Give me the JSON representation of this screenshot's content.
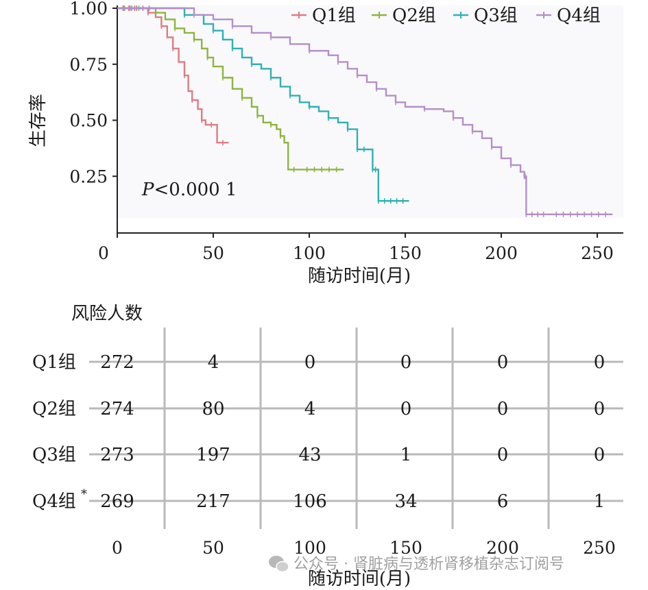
{
  "chart_data": {
    "type": "line",
    "subtype": "kaplan-meier",
    "ylabel": "生存率",
    "xlabel": "随访时间(月)",
    "xlim": [
      0,
      260
    ],
    "ylim": [
      0.07,
      1.0
    ],
    "x_ticks": [
      "0",
      "50",
      "100",
      "150",
      "200",
      "250"
    ],
    "y_ticks": [
      "0.25",
      "0.50",
      "0.75",
      "1.00"
    ],
    "x_tick_values": [
      0,
      50,
      100,
      150,
      200,
      250
    ],
    "y_tick_values": [
      0.25,
      0.5,
      0.75,
      1.0
    ],
    "annotation": {
      "italic": "P",
      "text": "<0.000 1"
    },
    "legend_position": "top-right",
    "series": [
      {
        "name": "Q1组",
        "color": "#dd7b82",
        "points": [
          [
            0,
            1.0
          ],
          [
            12,
            1.0
          ],
          [
            16,
            0.98
          ],
          [
            20,
            0.96
          ],
          [
            23,
            0.92
          ],
          [
            26,
            0.87
          ],
          [
            29,
            0.82
          ],
          [
            32,
            0.76
          ],
          [
            35,
            0.7
          ],
          [
            37,
            0.63
          ],
          [
            39,
            0.59
          ],
          [
            42,
            0.55
          ],
          [
            44,
            0.5
          ],
          [
            46,
            0.48
          ],
          [
            52,
            0.48
          ],
          [
            52,
            0.4
          ],
          [
            58,
            0.4
          ]
        ]
      },
      {
        "name": "Q2组",
        "color": "#8db43e",
        "points": [
          [
            0,
            1.0
          ],
          [
            15,
            1.0
          ],
          [
            20,
            0.98
          ],
          [
            25,
            0.95
          ],
          [
            30,
            0.91
          ],
          [
            35,
            0.89
          ],
          [
            40,
            0.86
          ],
          [
            44,
            0.82
          ],
          [
            47,
            0.78
          ],
          [
            50,
            0.74
          ],
          [
            55,
            0.69
          ],
          [
            60,
            0.64
          ],
          [
            65,
            0.6
          ],
          [
            70,
            0.56
          ],
          [
            73,
            0.52
          ],
          [
            76,
            0.49
          ],
          [
            80,
            0.48
          ],
          [
            83,
            0.46
          ],
          [
            85,
            0.43
          ],
          [
            87,
            0.4
          ],
          [
            89,
            0.38
          ],
          [
            89,
            0.28
          ],
          [
            95,
            0.28
          ],
          [
            118,
            0.28
          ]
        ]
      },
      {
        "name": "Q3组",
        "color": "#2eb0b5",
        "points": [
          [
            0,
            1.0
          ],
          [
            20,
            1.0
          ],
          [
            35,
            0.97
          ],
          [
            45,
            0.93
          ],
          [
            50,
            0.9
          ],
          [
            55,
            0.86
          ],
          [
            60,
            0.82
          ],
          [
            65,
            0.78
          ],
          [
            70,
            0.75
          ],
          [
            75,
            0.73
          ],
          [
            80,
            0.69
          ],
          [
            85,
            0.65
          ],
          [
            90,
            0.61
          ],
          [
            95,
            0.58
          ],
          [
            100,
            0.56
          ],
          [
            105,
            0.54
          ],
          [
            110,
            0.51
          ],
          [
            115,
            0.49
          ],
          [
            120,
            0.46
          ],
          [
            125,
            0.44
          ],
          [
            125,
            0.37
          ],
          [
            132,
            0.37
          ],
          [
            133,
            0.28
          ],
          [
            136,
            0.28
          ],
          [
            136,
            0.14
          ],
          [
            152,
            0.14
          ]
        ]
      },
      {
        "name": "Q4组",
        "color": "#b48ec8",
        "points": [
          [
            0,
            1.0
          ],
          [
            20,
            1.0
          ],
          [
            40,
            0.97
          ],
          [
            50,
            0.95
          ],
          [
            60,
            0.92
          ],
          [
            70,
            0.89
          ],
          [
            80,
            0.87
          ],
          [
            90,
            0.84
          ],
          [
            100,
            0.81
          ],
          [
            110,
            0.79
          ],
          [
            115,
            0.76
          ],
          [
            120,
            0.73
          ],
          [
            125,
            0.7
          ],
          [
            130,
            0.67
          ],
          [
            135,
            0.64
          ],
          [
            140,
            0.61
          ],
          [
            145,
            0.58
          ],
          [
            150,
            0.56
          ],
          [
            160,
            0.55
          ],
          [
            170,
            0.54
          ],
          [
            175,
            0.51
          ],
          [
            180,
            0.48
          ],
          [
            185,
            0.45
          ],
          [
            190,
            0.42
          ],
          [
            195,
            0.38
          ],
          [
            200,
            0.33
          ],
          [
            205,
            0.3
          ],
          [
            210,
            0.27
          ],
          [
            212,
            0.25
          ],
          [
            213,
            0.25
          ],
          [
            213,
            0.08
          ],
          [
            225,
            0.08
          ],
          [
            258,
            0.08
          ]
        ]
      }
    ],
    "risk_table": {
      "title": "风险人数",
      "xlabel": "随访时间(月)",
      "x_ticks": [
        "0",
        "50",
        "100",
        "150",
        "200",
        "250"
      ],
      "rows": [
        {
          "label": "Q1组",
          "marker": "",
          "values": [
            "272",
            "4",
            "0",
            "0",
            "0",
            "0"
          ]
        },
        {
          "label": "Q2组",
          "marker": "",
          "values": [
            "274",
            "80",
            "4",
            "0",
            "0",
            "0"
          ]
        },
        {
          "label": "Q3组",
          "marker": "",
          "values": [
            "273",
            "197",
            "43",
            "1",
            "0",
            "0"
          ]
        },
        {
          "label": "Q4组",
          "marker": "*",
          "values": [
            "269",
            "217",
            "106",
            "34",
            "6",
            "1"
          ]
        }
      ]
    }
  },
  "watermark": "公众号 · 肾脏病与透析肾移植杂志订阅号"
}
